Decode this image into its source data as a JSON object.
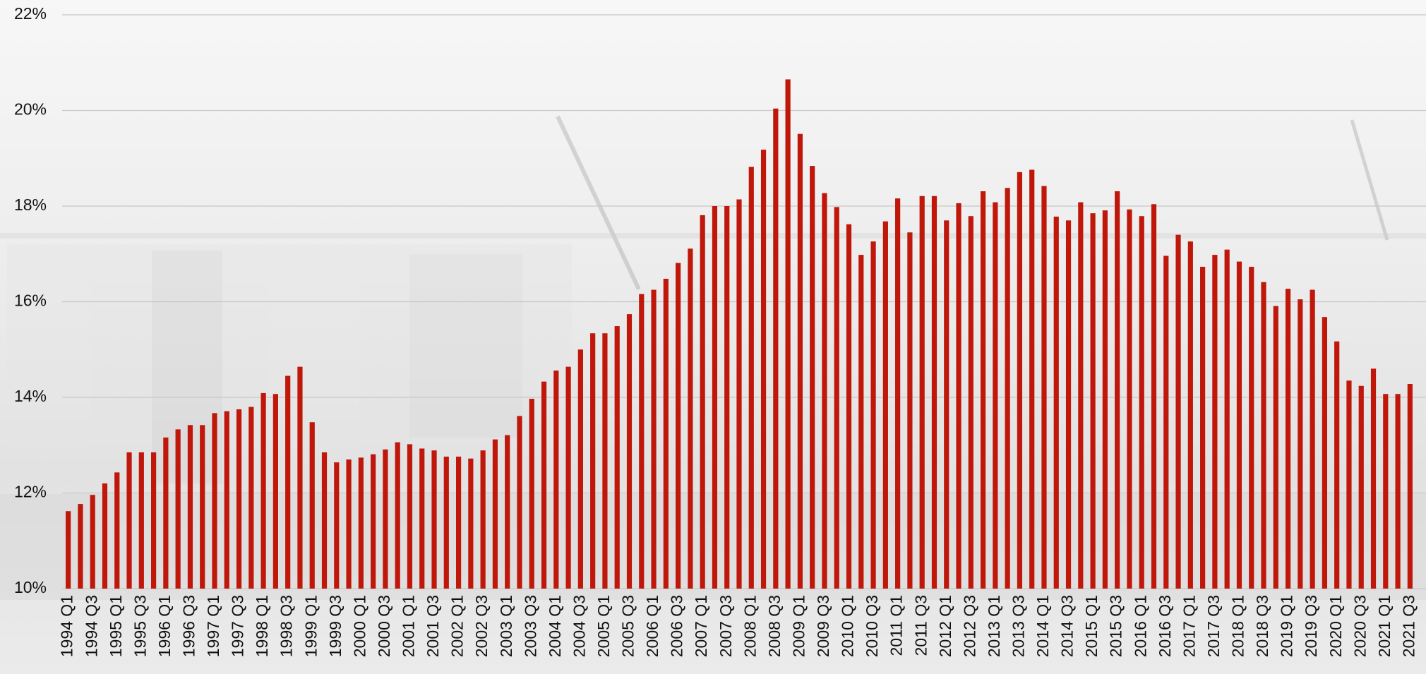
{
  "chart_data": {
    "type": "bar",
    "color": "#c0170b",
    "grid": true,
    "ylim": [
      10,
      22
    ],
    "yticks": [
      {
        "value": 10,
        "label": "10%"
      },
      {
        "value": 12,
        "label": "12%"
      },
      {
        "value": 14,
        "label": "14%"
      },
      {
        "value": 16,
        "label": "16%"
      },
      {
        "value": 18,
        "label": "18%"
      },
      {
        "value": 20,
        "label": "20%"
      },
      {
        "value": 22,
        "label": "22%"
      }
    ],
    "categories": [
      "1994 Q1",
      null,
      "1994 Q3",
      null,
      "1995 Q1",
      null,
      "1995 Q3",
      null,
      "1996 Q1",
      null,
      "1996 Q3",
      null,
      "1997 Q1",
      null,
      "1997 Q3",
      null,
      "1998 Q1",
      null,
      "1998 Q3",
      null,
      "1999 Q1",
      null,
      "1999 Q3",
      null,
      "2000 Q1",
      null,
      "2000 Q3",
      null,
      "2001 Q1",
      null,
      "2001 Q3",
      null,
      "2002 Q1",
      null,
      "2002 Q3",
      null,
      "2003 Q1",
      null,
      "2003 Q3",
      null,
      "2004 Q1",
      null,
      "2004 Q3",
      null,
      "2005 Q1",
      null,
      "2005 Q3",
      null,
      "2006 Q1",
      null,
      "2006 Q3",
      null,
      "2007 Q1",
      null,
      "2007 Q3",
      null,
      "2008 Q1",
      null,
      "2008 Q3",
      null,
      "2009 Q1",
      null,
      "2009 Q3",
      null,
      "2010 Q1",
      null,
      "2010 Q3",
      null,
      "2011 Q1",
      null,
      "2011 Q3",
      null,
      "2012 Q1",
      null,
      "2012 Q3",
      null,
      "2013 Q1",
      null,
      "2013 Q3",
      null,
      "2014 Q1",
      null,
      "2014 Q3",
      null,
      "2015 Q1",
      null,
      "2015 Q3",
      null,
      "2016 Q1",
      null,
      "2016 Q3",
      null,
      "2017 Q1",
      null,
      "2017 Q3",
      null,
      "2018 Q1",
      null,
      "2018 Q3",
      null,
      "2019 Q1",
      null,
      "2019 Q3",
      null,
      "2020 Q1",
      null,
      "2020 Q3",
      null,
      "2021 Q1",
      null,
      "2021 Q3"
    ],
    "values": [
      11.62,
      11.77,
      11.96,
      12.2,
      12.43,
      12.85,
      12.85,
      12.85,
      13.16,
      13.33,
      13.42,
      13.42,
      13.67,
      13.71,
      13.75,
      13.8,
      14.09,
      14.07,
      14.45,
      14.64,
      13.48,
      12.85,
      12.64,
      12.7,
      12.74,
      12.81,
      12.91,
      13.06,
      13.02,
      12.93,
      12.89,
      12.76,
      12.76,
      12.72,
      12.89,
      13.12,
      13.21,
      13.61,
      13.97,
      14.33,
      14.56,
      14.64,
      15.0,
      15.34,
      15.34,
      15.49,
      15.74,
      16.16,
      16.25,
      16.48,
      16.81,
      17.11,
      17.81,
      18.0,
      18.0,
      18.14,
      18.82,
      19.18,
      20.04,
      20.65,
      19.51,
      18.84,
      18.27,
      17.98,
      17.62,
      16.98,
      17.26,
      17.68,
      18.16,
      17.45,
      18.21,
      18.21,
      17.7,
      18.06,
      17.79,
      18.31,
      18.08,
      18.38,
      18.71,
      18.76,
      18.42,
      17.78,
      17.7,
      18.08,
      17.85,
      17.91,
      18.31,
      17.93,
      17.79,
      18.04,
      16.96,
      17.4,
      17.26,
      16.73,
      16.98,
      17.09,
      16.84,
      16.73,
      16.41,
      15.91,
      16.27,
      16.05,
      16.25,
      15.68,
      15.17,
      14.35,
      14.24,
      14.6,
      14.07,
      14.07,
      14.28
    ]
  }
}
